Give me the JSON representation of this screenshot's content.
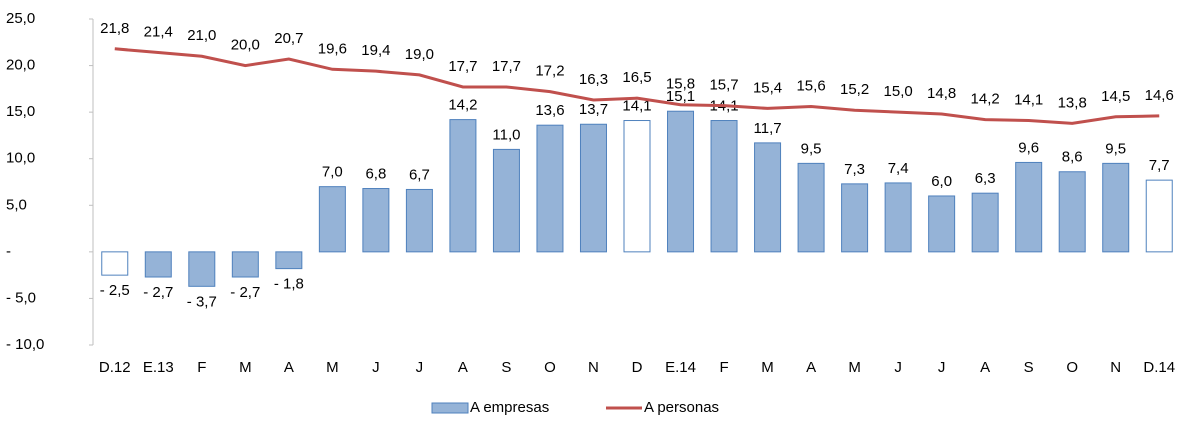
{
  "chart_data": {
    "type": "bar-line",
    "categories": [
      "D.12",
      "E.13",
      "F",
      "M",
      "A",
      "M",
      "J",
      "J",
      "A",
      "S",
      "O",
      "N",
      "D",
      "E.14",
      "F",
      "M",
      "A",
      "M",
      "J",
      "J",
      "A",
      "S",
      "O",
      "N",
      "D.14"
    ],
    "series": [
      {
        "name": "A empresas",
        "type": "bar",
        "color": "#95b3d7",
        "point_colors": [
          "#ffffff",
          "#95b3d7",
          "#95b3d7",
          "#95b3d7",
          "#95b3d7",
          "#95b3d7",
          "#95b3d7",
          "#95b3d7",
          "#95b3d7",
          "#95b3d7",
          "#95b3d7",
          "#95b3d7",
          "#ffffff",
          "#95b3d7",
          "#95b3d7",
          "#95b3d7",
          "#95b3d7",
          "#95b3d7",
          "#95b3d7",
          "#95b3d7",
          "#95b3d7",
          "#95b3d7",
          "#95b3d7",
          "#95b3d7",
          "#ffffff"
        ],
        "values": [
          -2.5,
          -2.7,
          -3.7,
          -2.7,
          -1.8,
          7.0,
          6.8,
          6.7,
          14.2,
          11.0,
          13.6,
          13.7,
          14.1,
          15.1,
          14.1,
          11.7,
          9.5,
          7.3,
          7.4,
          6.0,
          6.3,
          9.6,
          8.6,
          9.5,
          7.7
        ],
        "value_labels": [
          "- 2,5",
          "- 2,7",
          "- 3,7",
          "- 2,7",
          "- 1,8",
          "7,0",
          "6,8",
          "6,7",
          "14,2",
          "11,0",
          "13,6",
          "13,7",
          "14,1",
          "15,1",
          "14,1",
          "11,7",
          "9,5",
          "7,3",
          "7,4",
          "6,0",
          "6,3",
          "9,6",
          "8,6",
          "9,5",
          "7,7"
        ]
      },
      {
        "name": "A personas",
        "type": "line",
        "color": "#c0504d",
        "values": [
          21.8,
          21.4,
          21.0,
          20.0,
          20.7,
          19.6,
          19.4,
          19.0,
          17.7,
          17.7,
          17.2,
          16.3,
          16.5,
          15.8,
          15.7,
          15.4,
          15.6,
          15.2,
          15.0,
          14.8,
          14.2,
          14.1,
          13.8,
          14.5,
          14.6
        ],
        "value_labels": [
          "21,8",
          "21,4",
          "21,0",
          "20,0",
          "20,7",
          "19,6",
          "19,4",
          "19,0",
          "17,7",
          "17,7",
          "17,2",
          "16,3",
          "16,5",
          "15,8",
          "15,7",
          "15,4",
          "15,6",
          "15,2",
          "15,0",
          "14,8",
          "14,2",
          "14,1",
          "13,8",
          "14,5",
          "14,6"
        ]
      }
    ],
    "ylim": [
      -10,
      25
    ],
    "yticks": [
      {
        "value": -10,
        "label": "- 10,0"
      },
      {
        "value": -5,
        "label": "- 5,0"
      },
      {
        "value": 0,
        "label": "-"
      },
      {
        "value": 5,
        "label": "5,0"
      },
      {
        "value": 10,
        "label": "10,0"
      },
      {
        "value": 15,
        "label": "15,0"
      },
      {
        "value": 20,
        "label": "20,0"
      },
      {
        "value": 25,
        "label": "25,0"
      }
    ],
    "grid": false,
    "legend": "bottom"
  }
}
